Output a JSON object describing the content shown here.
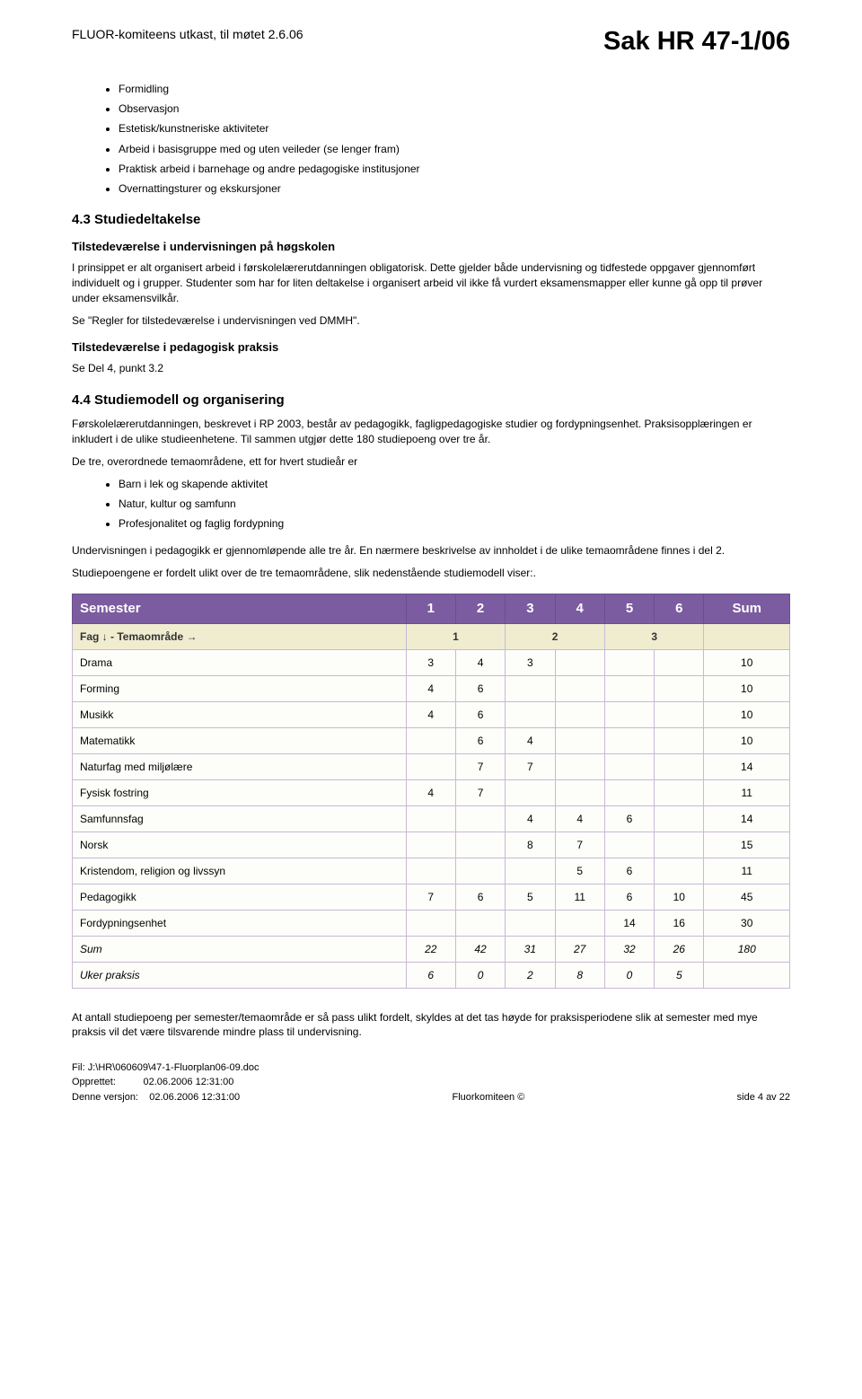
{
  "header": {
    "left": "FLUOR-komiteens utkast, til møtet 2.6.06",
    "right": "Sak HR 47-1/06"
  },
  "top_bullets": [
    "Formidling",
    "Observasjon",
    "Estetisk/kunstneriske aktiviteter",
    "Arbeid i basisgruppe med og uten veileder (se lenger fram)",
    "Praktisk arbeid i barnehage og andre pedagogiske institusjoner",
    "Overnattingsturer og ekskursjoner"
  ],
  "s43": {
    "title": "4.3 Studiedeltakelse",
    "sub1_title": "Tilstedeværelse i undervisningen på høgskolen",
    "p1": "I prinsippet er alt organisert arbeid i førskolelærerutdanningen obligatorisk. Dette gjelder både undervisning og tidfestede oppgaver gjennomført individuelt og i grupper. Studenter som har for liten deltakelse i organisert arbeid vil ikke få vurdert eksamensmapper eller kunne gå opp til prøver under eksamensvilkår.",
    "p2": "Se \"Regler for tilstedeværelse i undervisningen ved DMMH\".",
    "sub2_title": "Tilstedeværelse i pedagogisk praksis",
    "p3": "Se Del 4, punkt 3.2"
  },
  "s44": {
    "title": "4.4 Studiemodell og organisering",
    "p1": "Førskolelærerutdanningen, beskrevet i RP 2003, består av pedagogikk, fagligpedagogiske studier og fordypningsenhet. Praksisopplæringen er inkludert i de ulike studieenhetene. Til sammen utgjør dette 180 studiepoeng over tre år.",
    "p2": "De tre, overordnede temaområdene, ett for hvert studieår er",
    "bullets": [
      "Barn i lek og skapende aktivitet",
      "Natur, kultur og samfunn",
      "Profesjonalitet og faglig fordypning"
    ],
    "p3": "Undervisningen i pedagogikk er gjennomløpende alle tre år. En nærmere beskrivelse av innholdet i de ulike temaområdene finnes i del 2.",
    "p4": "Studiepoengene er fordelt ulikt over de tre temaområdene, slik nedenstående studiemodell viser:."
  },
  "table": {
    "sem_label": "Semester",
    "sem_cols": [
      "1",
      "2",
      "3",
      "4",
      "5",
      "6"
    ],
    "sum_label": "Sum",
    "fag_label": "Fag ↓ - Temaområde →",
    "tema_groups": [
      "1",
      "2",
      "3"
    ],
    "rows": [
      {
        "name": "Drama",
        "vals": [
          "3",
          "4",
          "3",
          "",
          "",
          ""
        ],
        "sum": "10"
      },
      {
        "name": "Forming",
        "vals": [
          "4",
          "6",
          "",
          "",
          "",
          ""
        ],
        "sum": "10"
      },
      {
        "name": "Musikk",
        "vals": [
          "4",
          "6",
          "",
          "",
          "",
          ""
        ],
        "sum": "10"
      },
      {
        "name": "Matematikk",
        "vals": [
          "",
          "6",
          "4",
          "",
          "",
          ""
        ],
        "sum": "10"
      },
      {
        "name": "Naturfag med miljølære",
        "vals": [
          "",
          "7",
          "7",
          "",
          "",
          ""
        ],
        "sum": "14"
      },
      {
        "name": "Fysisk fostring",
        "vals": [
          "4",
          "7",
          "",
          "",
          "",
          ""
        ],
        "sum": "11"
      },
      {
        "name": "Samfunnsfag",
        "vals": [
          "",
          "",
          "4",
          "4",
          "6",
          ""
        ],
        "sum": "14"
      },
      {
        "name": "Norsk",
        "vals": [
          "",
          "",
          "8",
          "7",
          "",
          ""
        ],
        "sum": "15"
      },
      {
        "name": "Kristendom, religion og livssyn",
        "vals": [
          "",
          "",
          "",
          "5",
          "6",
          ""
        ],
        "sum": "11"
      },
      {
        "name": "Pedagogikk",
        "vals": [
          "7",
          "6",
          "5",
          "11",
          "6",
          "10"
        ],
        "sum": "45"
      },
      {
        "name": "Fordypningsenhet",
        "vals": [
          "",
          "",
          "",
          "",
          "14",
          "16"
        ],
        "sum": "30"
      }
    ],
    "sum_row": {
      "name": "Sum",
      "vals": [
        "22",
        "42",
        "31",
        "27",
        "32",
        "26"
      ],
      "sum": "180"
    },
    "uker_row": {
      "name": "Uker praksis",
      "vals": [
        "6",
        "0",
        "2",
        "8",
        "0",
        "5"
      ],
      "sum": ""
    },
    "colors": {
      "sem_bg": "#7b5ca0",
      "sem_fg": "#ffffff",
      "fag_bg": "#f0ecd0",
      "cell_bg": "#fdfdfa",
      "border": "#c9b8d6"
    }
  },
  "closing_para": "At antall studiepoeng per semester/temaområde er så pass ulikt fordelt, skyldes at det tas høyde for praksisperiodene slik at semester med mye praksis vil det være tilsvarende mindre plass til undervisning.",
  "footer": {
    "line1": "Fil: J:\\HR\\060609\\47-1-Fluorplan06-09.doc",
    "line2_label": "Opprettet:",
    "line2_value": "02.06.2006 12:31:00",
    "line3_label": "Denne versjon:",
    "line3_value": "02.06.2006 12:31:00",
    "center": "Fluorkomiteen ©",
    "right": "side 4 av 22"
  }
}
